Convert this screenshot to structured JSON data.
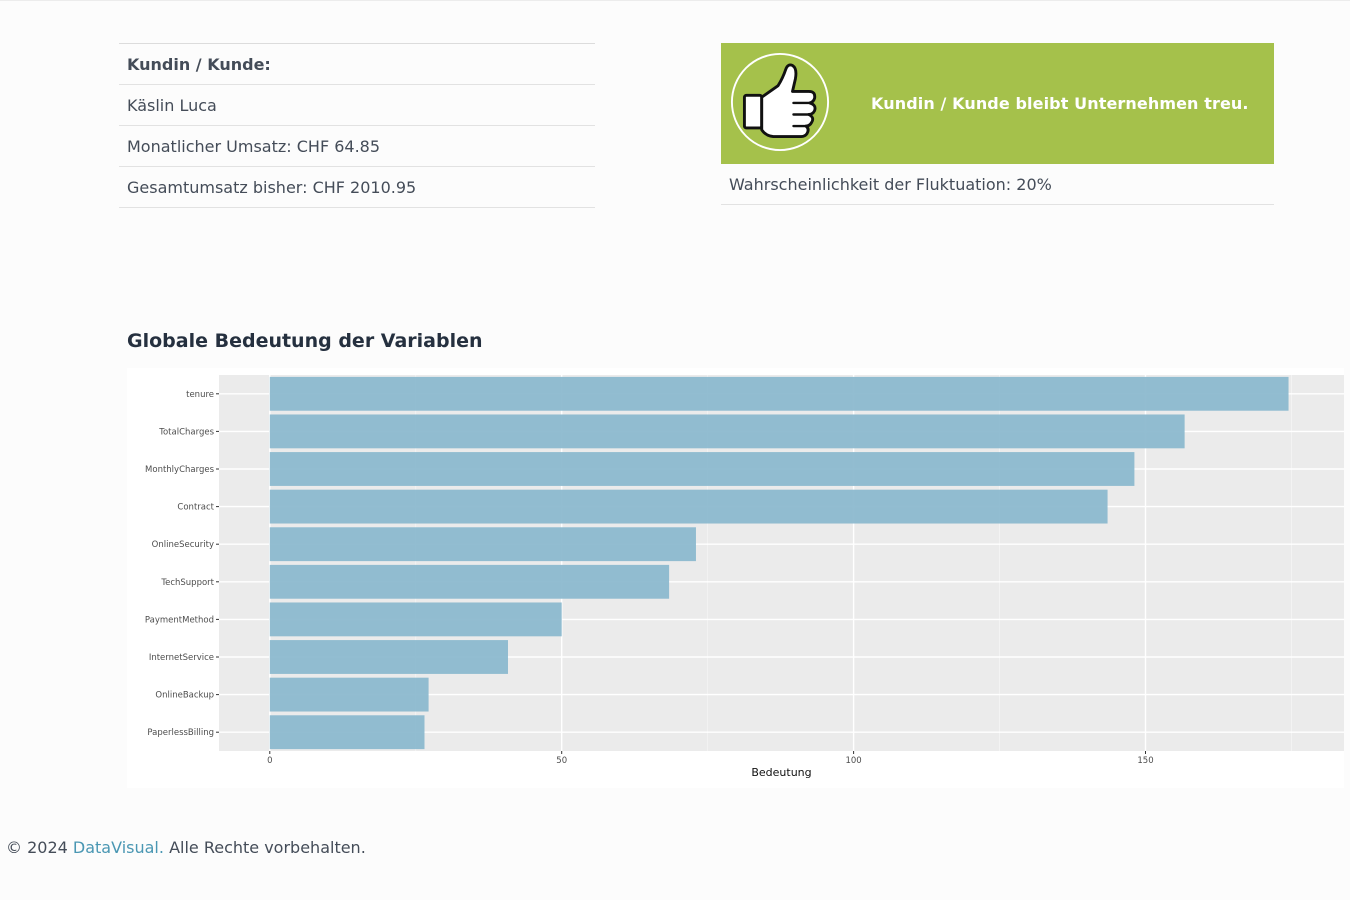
{
  "customer": {
    "header": "Kundin / Kunde:",
    "name": "Käslin Luca",
    "monthly_revenue": "Monatlicher Umsatz: CHF 64.85",
    "total_revenue": "Gesamtumsatz bisher: CHF 2010.95"
  },
  "prediction": {
    "message": "Kundin / Kunde bleibt Unternehmen treu.",
    "probability": "Wahrscheinlichkeit der Fluktuation: 20%",
    "icon": "thumbs-up-icon",
    "color": "#a5c14b"
  },
  "section": {
    "title": "Globale Bedeutung der Variablen"
  },
  "chart_data": {
    "type": "bar",
    "orientation": "horizontal",
    "categories": [
      "tenure",
      "TotalCharges",
      "MonthlyCharges",
      "Contract",
      "OnlineSecurity",
      "TechSupport",
      "PaymentMethod",
      "InternetService",
      "OnlineBackup",
      "PaperlessBilling"
    ],
    "values": [
      174.5,
      156.7,
      148.1,
      143.5,
      73,
      68.4,
      50,
      40.8,
      27.2,
      26.5
    ],
    "xlabel": "Bedeutung",
    "ylabel": "",
    "xlim": [
      -8.7,
      184
    ],
    "xticks": [
      "0",
      "50",
      "100",
      "150"
    ],
    "bar_color": "#8cb9cf",
    "panel_color": "#ebebeb",
    "grid": true
  },
  "footer": {
    "copyright": "© 2024",
    "brand": "DataVisual.",
    "rights": "Alle Rechte vorbehalten."
  }
}
